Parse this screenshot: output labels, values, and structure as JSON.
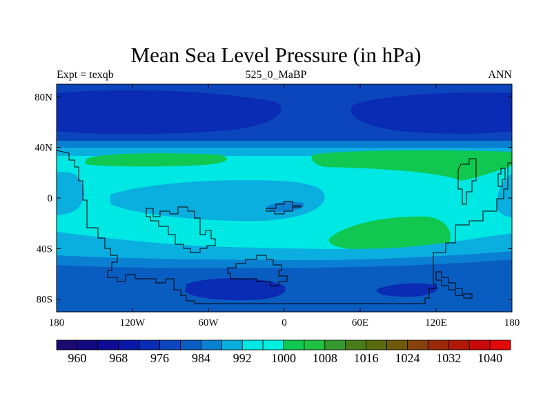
{
  "title": "Mean Sea Level Pressure (in hPa)",
  "left_label": "Expt = texqb",
  "center_label": "525_0_MaBP",
  "right_label": "ANN",
  "chart_data": {
    "type": "heatmap",
    "field": "mean sea level pressure",
    "units": "hPa",
    "projection": "cylindrical equidistant",
    "xlim": [
      -180,
      180
    ],
    "ylim": [
      -90,
      90
    ],
    "x_ticks": [
      {
        "value": -180,
        "label": "180"
      },
      {
        "value": -120,
        "label": "120W"
      },
      {
        "value": -60,
        "label": "60W"
      },
      {
        "value": 0,
        "label": "0"
      },
      {
        "value": 60,
        "label": "60E"
      },
      {
        "value": 120,
        "label": "120E"
      },
      {
        "value": 180,
        "label": "180"
      }
    ],
    "y_ticks": [
      {
        "value": 80,
        "label": "80N"
      },
      {
        "value": 40,
        "label": "40N"
      },
      {
        "value": 0,
        "label": "0"
      },
      {
        "value": -40,
        "label": "40S"
      },
      {
        "value": -80,
        "label": "80S"
      }
    ],
    "colorbar": {
      "levels": [
        960,
        964,
        968,
        972,
        976,
        980,
        984,
        988,
        992,
        996,
        1000,
        1004,
        1008,
        1012,
        1016,
        1020,
        1024,
        1028,
        1032,
        1036,
        1040
      ],
      "labels": [
        "960",
        "968",
        "976",
        "984",
        "992",
        "1000",
        "1008",
        "1016",
        "1024",
        "1032",
        "1040"
      ],
      "colors": [
        "#1c0a6e",
        "#130a82",
        "#0e0c95",
        "#0a18a8",
        "#0a2bb3",
        "#0c46bc",
        "#0a5dc0",
        "#0a80d2",
        "#0aafdf",
        "#00e8e3",
        "#00f0e0",
        "#10c850",
        "#20c040",
        "#349a2e",
        "#4a7d1a",
        "#5a6c10",
        "#6e5a0a",
        "#86420a",
        "#9a2a0a",
        "#b01808",
        "#c80a0a",
        "#e00a0a"
      ]
    },
    "regions": [
      {
        "level": "980-984",
        "color": "#0c46bc",
        "desc": "north polar low belt"
      },
      {
        "level": "976-980",
        "color": "#0a2bb3",
        "desc": "low core centred near 60N, 120W"
      },
      {
        "level": "976-980",
        "color": "#0a2bb3",
        "desc": "low core centred near 65N, 120E"
      },
      {
        "level": "988-992",
        "color": "#0a80d2",
        "desc": "mid-latitude gradient band"
      },
      {
        "level": "992-996",
        "color": "#0aafdf",
        "desc": "subtropical band"
      },
      {
        "level": "996-1000",
        "color": "#00e8e3",
        "desc": "tropical and subtropical background"
      },
      {
        "level": "1004-1008",
        "color": "#10c850",
        "desc": "high near 30N, 120W"
      },
      {
        "level": "1004-1008",
        "color": "#10c850",
        "desc": "high near 30N, 110E"
      },
      {
        "level": "1004-1008",
        "color": "#10c850",
        "desc": "high near 30S, 80E"
      },
      {
        "level": "992-996",
        "color": "#0aafdf",
        "desc": "small low near 5S, 10W"
      },
      {
        "level": "984-988",
        "color": "#0a5dc0",
        "desc": "southern mid-latitude band"
      },
      {
        "level": "976-980",
        "color": "#0a2bb3",
        "desc": "low near 72S, 40W"
      },
      {
        "level": "976-980",
        "color": "#0a2bb3",
        "desc": "low near 76S, 100E"
      }
    ]
  }
}
